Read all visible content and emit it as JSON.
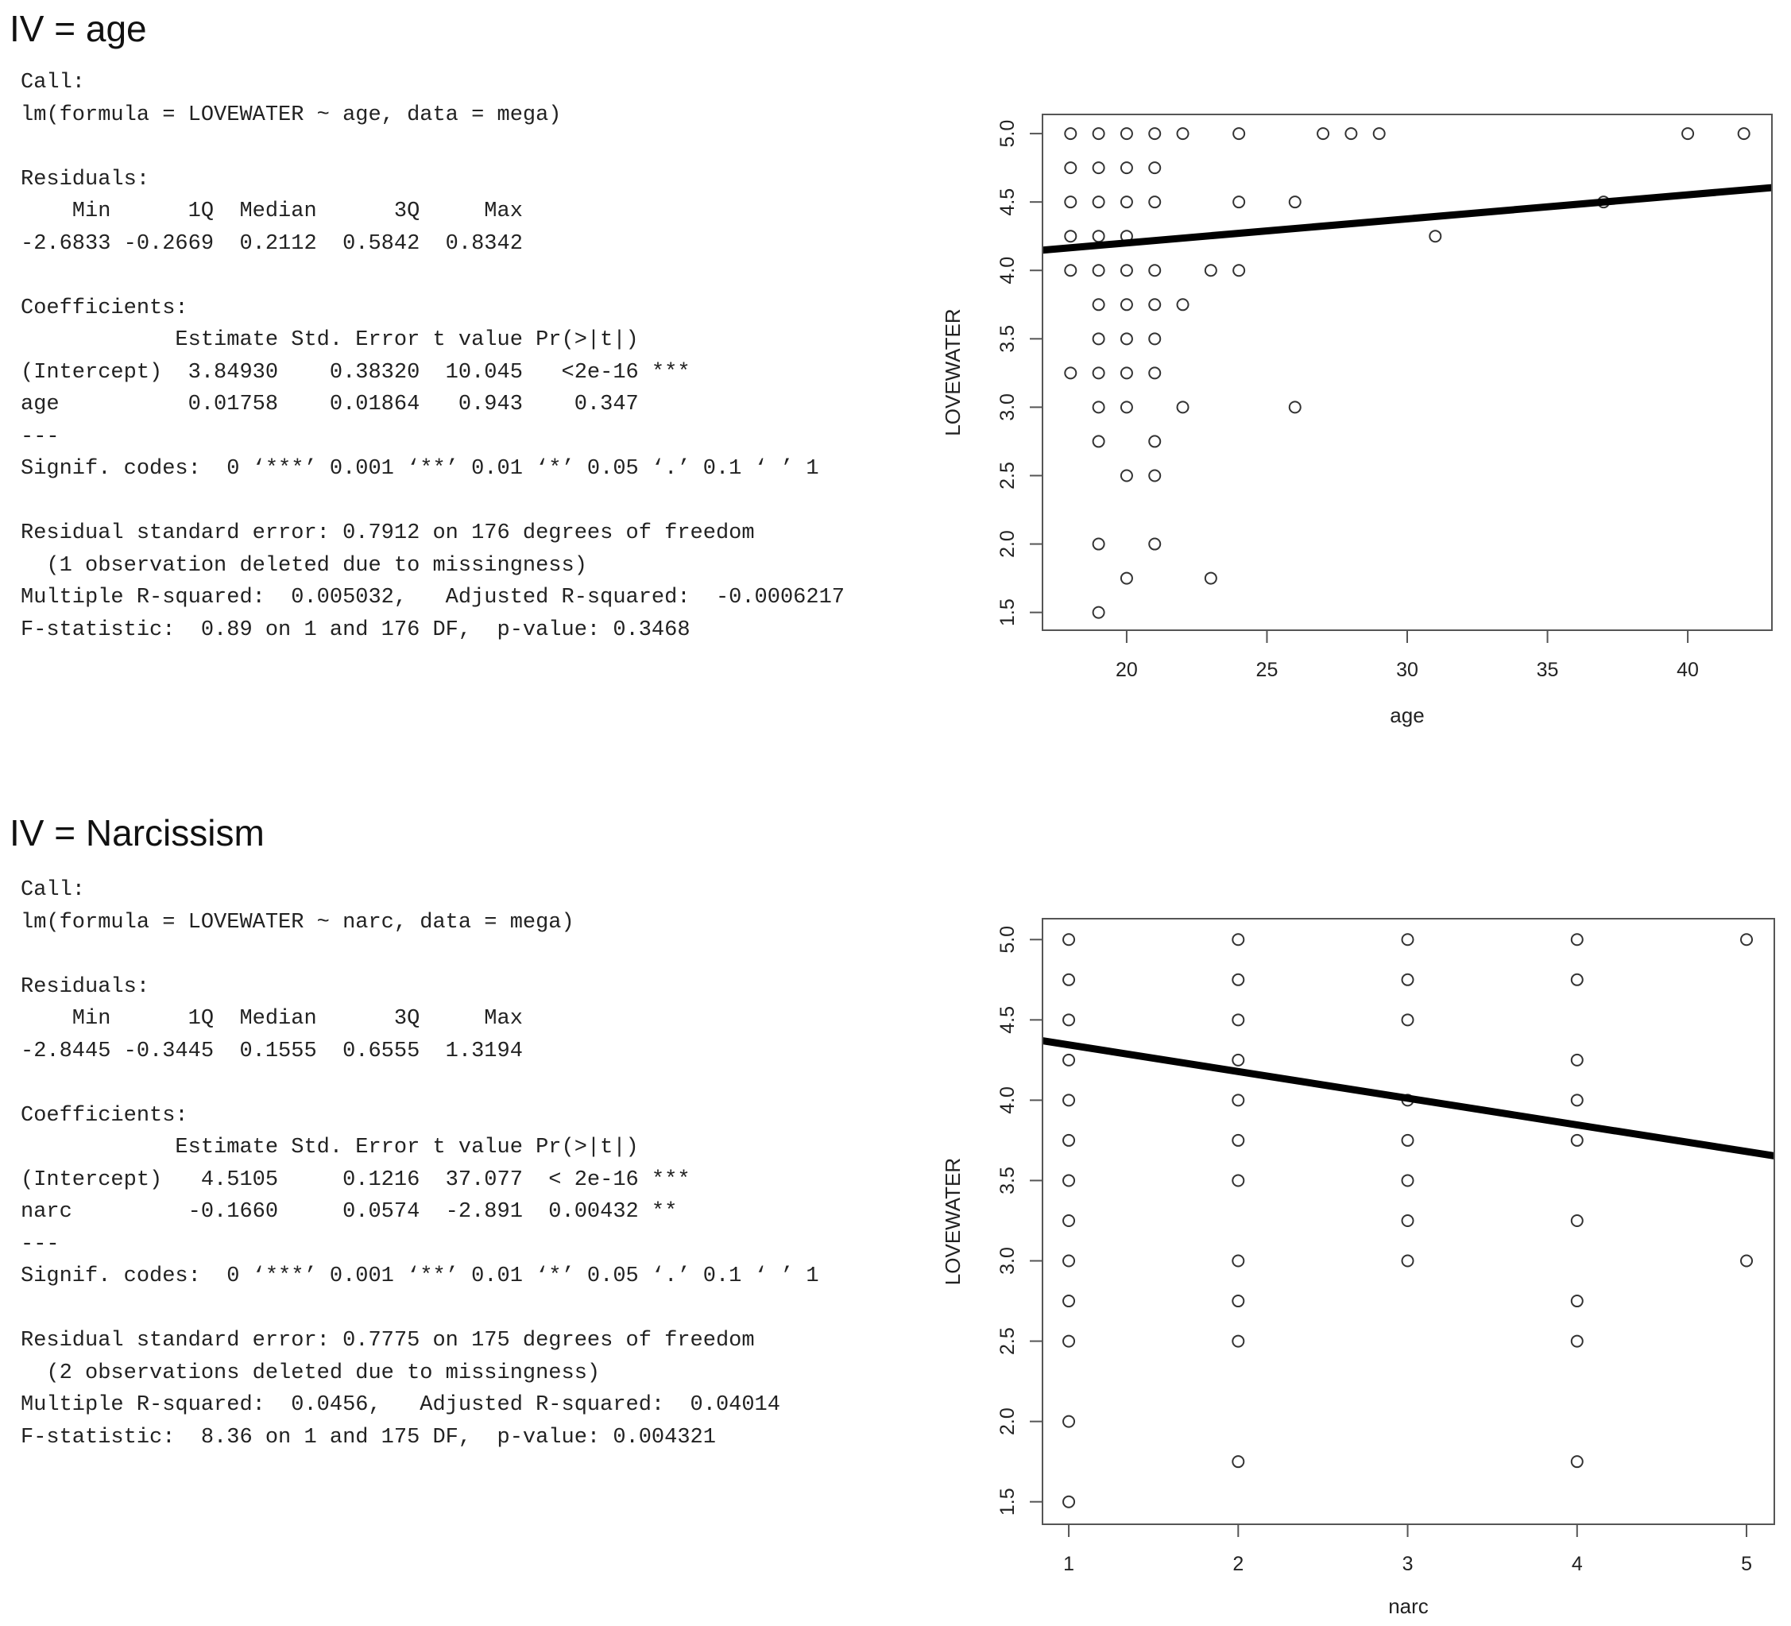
{
  "sections": [
    {
      "title": "IV = age",
      "output_lines": [
        "Call:",
        "lm(formula = LOVEWATER ~ age, data = mega)",
        "",
        "Residuals:",
        "    Min      1Q  Median      3Q     Max ",
        "-2.6833 -0.2669  0.2112  0.5842  0.8342 ",
        "",
        "Coefficients:",
        "            Estimate Std. Error t value Pr(>|t|)    ",
        "(Intercept)  3.84930    0.38320  10.045   <2e-16 ***",
        "age          0.01758    0.01864   0.943    0.347    ",
        "---",
        "Signif. codes:  0 ‘***’ 0.001 ‘**’ 0.01 ‘*’ 0.05 ‘.’ 0.1 ‘ ’ 1",
        "",
        "Residual standard error: 0.7912 on 176 degrees of freedom",
        "  (1 observation deleted due to missingness)",
        "Multiple R-squared:  0.005032,\tAdjusted R-squared:  -0.0006217 ",
        "F-statistic:  0.89 on 1 and 176 DF,  p-value: 0.3468"
      ]
    },
    {
      "title": "IV = Narcissism",
      "output_lines": [
        "Call:",
        "lm(formula = LOVEWATER ~ narc, data = mega)",
        "",
        "Residuals:",
        "    Min      1Q  Median      3Q     Max ",
        "-2.8445 -0.3445  0.1555  0.6555  1.3194 ",
        "",
        "Coefficients:",
        "            Estimate Std. Error t value Pr(>|t|)    ",
        "(Intercept)   4.5105     0.1216  37.077  < 2e-16 ***",
        "narc         -0.1660     0.0574  -2.891  0.00432 ** ",
        "---",
        "Signif. codes:  0 ‘***’ 0.001 ‘**’ 0.01 ‘*’ 0.05 ‘.’ 0.1 ‘ ’ 1",
        "",
        "Residual standard error: 0.7775 on 175 degrees of freedom",
        "  (2 observations deleted due to missingness)",
        "Multiple R-squared:  0.0456,\tAdjusted R-squared:  0.04014 ",
        "F-statistic:  8.36 on 1 and 175 DF,  p-value: 0.004321"
      ]
    }
  ],
  "chart_data": [
    {
      "type": "scatter",
      "title": "",
      "xlabel": "age",
      "ylabel": "LOVEWATER",
      "xlim": [
        17.0,
        43.0
      ],
      "ylim": [
        1.37,
        5.14
      ],
      "xticks": [
        20,
        25,
        30,
        35,
        40
      ],
      "yticks": [
        1.5,
        2.0,
        2.5,
        3.0,
        3.5,
        4.0,
        4.5,
        5.0
      ],
      "xtick_labels": [
        "20",
        "25",
        "30",
        "35",
        "40"
      ],
      "ytick_labels": [
        "1.5",
        "2.0",
        "2.5",
        "3.0",
        "3.5",
        "4.0",
        "4.5",
        "5.0"
      ],
      "grid": false,
      "regression_line": {
        "intercept": 3.8493,
        "slope": 0.01758
      },
      "points_by_y": {
        "5.0": [
          18,
          19,
          20,
          21,
          22,
          24,
          27,
          28,
          29,
          40,
          42
        ],
        "4.75": [
          18,
          19,
          20,
          21
        ],
        "4.5": [
          18,
          19,
          20,
          21,
          24,
          26,
          37
        ],
        "4.25": [
          18,
          19,
          20,
          31
        ],
        "4.0": [
          18,
          19,
          20,
          21,
          23,
          24
        ],
        "3.75": [
          19,
          20,
          21,
          22
        ],
        "3.5": [
          19,
          20,
          21
        ],
        "3.25": [
          18,
          19,
          20,
          21
        ],
        "3.0": [
          19,
          20,
          22,
          26
        ],
        "2.75": [
          19,
          21
        ],
        "2.5": [
          20,
          21
        ],
        "2.0": [
          19,
          21
        ],
        "1.75": [
          20,
          23
        ],
        "1.5": [
          19
        ]
      }
    },
    {
      "type": "scatter",
      "title": "",
      "xlabel": "narc",
      "ylabel": "LOVEWATER",
      "xlim": [
        0.845,
        5.164
      ],
      "ylim": [
        1.36,
        5.13
      ],
      "xticks": [
        1,
        2,
        3,
        4,
        5
      ],
      "yticks": [
        1.5,
        2.0,
        2.5,
        3.0,
        3.5,
        4.0,
        4.5,
        5.0
      ],
      "xtick_labels": [
        "1",
        "2",
        "3",
        "4",
        "5"
      ],
      "ytick_labels": [
        "1.5",
        "2.0",
        "2.5",
        "3.0",
        "3.5",
        "4.0",
        "4.5",
        "5.0"
      ],
      "grid": false,
      "regression_line": {
        "intercept": 4.5105,
        "slope": -0.166
      },
      "points_by_x": {
        "1": [
          5,
          4.75,
          4.5,
          4.25,
          4,
          3.75,
          3.5,
          3.25,
          3,
          2.75,
          2.5,
          2,
          1.5
        ],
        "2": [
          5,
          4.75,
          4.5,
          4.25,
          4,
          3.75,
          3.5,
          3,
          2.75,
          2.5,
          1.75
        ],
        "3": [
          5,
          4.75,
          4.5,
          4,
          3.75,
          3.5,
          3.25,
          3
        ],
        "4": [
          5,
          4.75,
          4.25,
          4,
          3.75,
          3.25,
          2.75,
          2.5,
          1.75
        ],
        "5": [
          5,
          3
        ]
      }
    }
  ]
}
